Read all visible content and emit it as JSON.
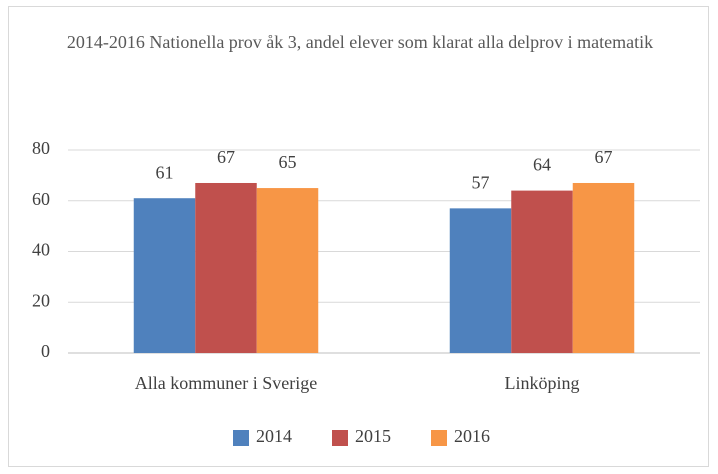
{
  "chart_data": {
    "type": "bar",
    "title": "2014-2016 Nationella prov åk 3, andel elever som klarat alla delprov i matematik",
    "categories": [
      "Alla kommuner i Sverige",
      "Linköping"
    ],
    "series": [
      {
        "name": "2014",
        "color": "#4f81bd",
        "values": [
          61,
          57
        ]
      },
      {
        "name": "2015",
        "color": "#c0504d",
        "values": [
          67,
          64
        ]
      },
      {
        "name": "2016",
        "color": "#f79646",
        "values": [
          65,
          67
        ]
      }
    ],
    "ylim": [
      0,
      80
    ],
    "yticks": [
      0,
      20,
      40,
      60,
      80
    ],
    "grid": true,
    "legend": "bottom"
  }
}
